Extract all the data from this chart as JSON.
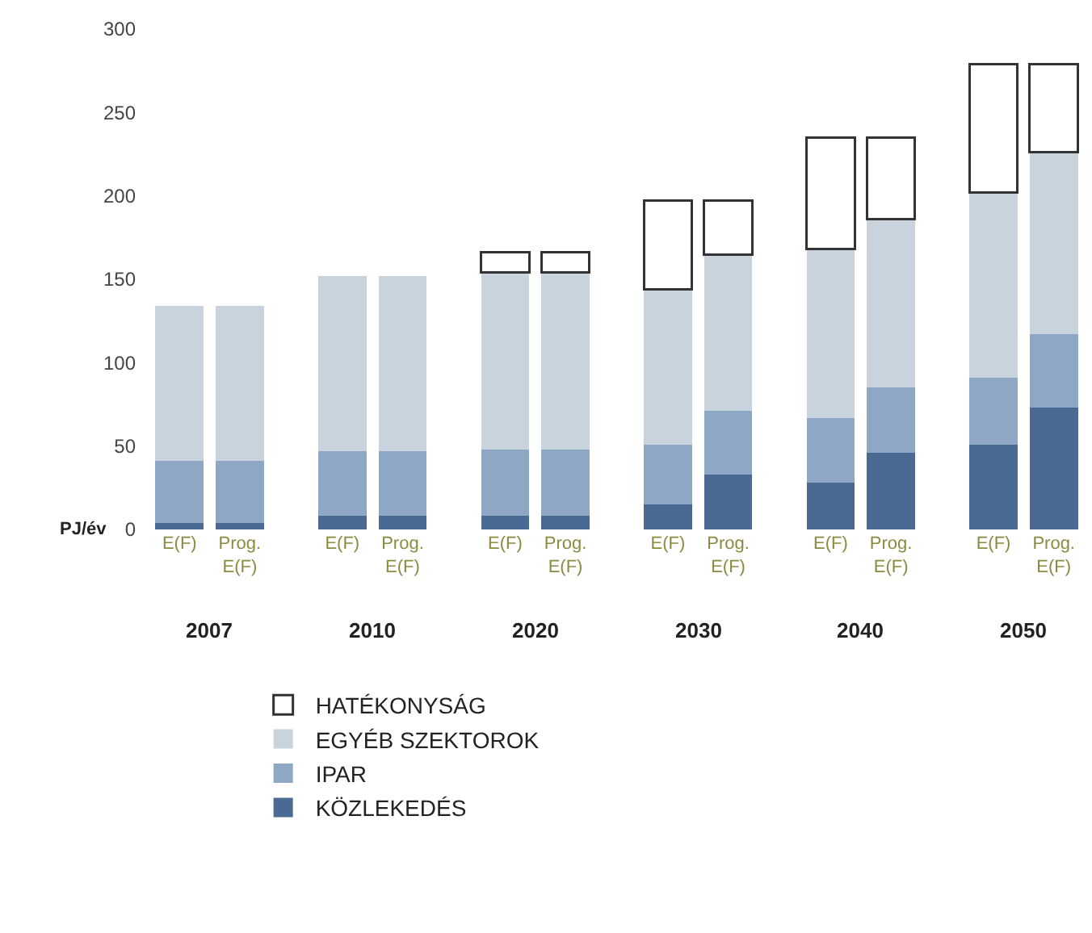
{
  "chart_data": {
    "type": "bar",
    "stacked": true,
    "ylabel": "PJ/év",
    "categories": [
      "E(F)",
      "Prog. E(F)",
      "E(F)",
      "Prog. E(F)",
      "E(F)",
      "Prog. E(F)",
      "E(F)",
      "Prog. E(F)",
      "E(F)",
      "Prog. E(F)",
      "E(F)",
      "Prog. E(F)"
    ],
    "series": [
      {
        "name": "KÖZLEKEDÉS",
        "color": "#4a6a94",
        "values": [
          4,
          4,
          8,
          8,
          8,
          8,
          15,
          33,
          28,
          46,
          51,
          73
        ]
      },
      {
        "name": "IPAR",
        "color": "#8ea7c4",
        "values": [
          37,
          37,
          39,
          39,
          40,
          40,
          36,
          38,
          39,
          39,
          40,
          44
        ]
      },
      {
        "name": "EGYÉB SZEKTOROK",
        "color": "#c8d3de",
        "values": [
          93,
          93,
          105,
          105,
          106,
          106,
          93,
          94,
          101,
          101,
          111,
          109
        ]
      },
      {
        "name": "HATÉKONYSÁG",
        "color": "#ffffff",
        "values": [
          0,
          0,
          0,
          0,
          12,
          12,
          53,
          32,
          67,
          49,
          77,
          53
        ]
      }
    ],
    "annotations": [
      "2007",
      "2010",
      "2020",
      "2030",
      "2040",
      "2050"
    ],
    "ylim": [
      0,
      300
    ],
    "yticks": [
      0,
      50,
      100,
      150,
      200,
      250,
      300
    ],
    "legend": "bottom"
  }
}
